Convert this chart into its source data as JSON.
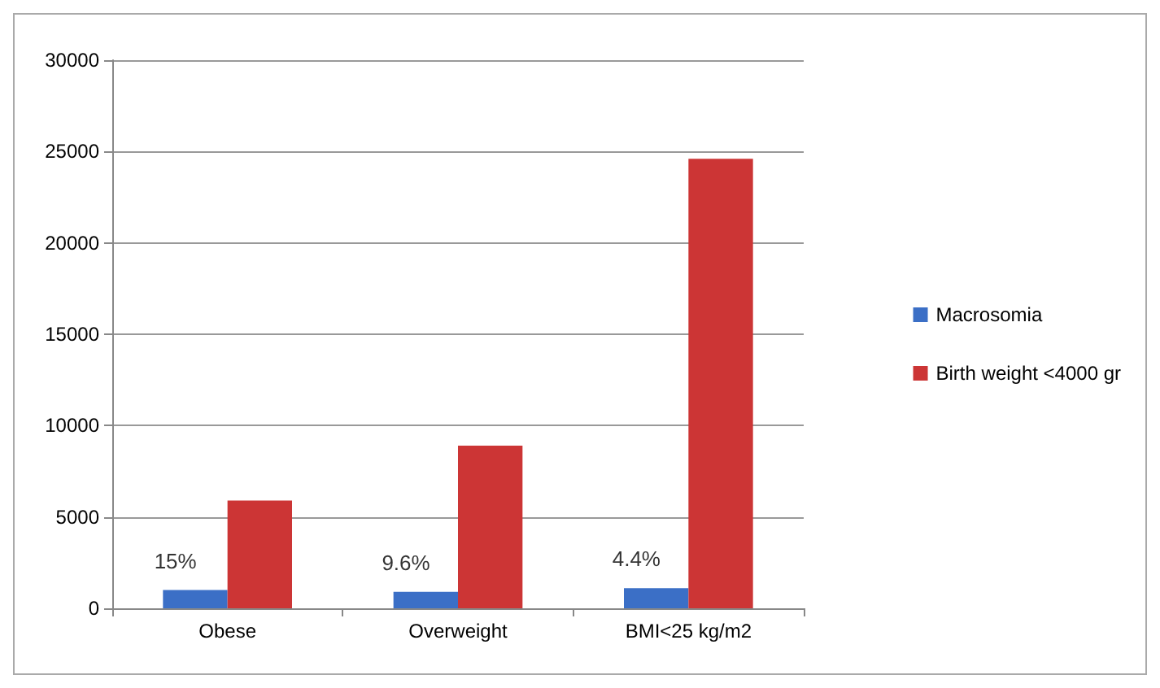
{
  "chart_data": {
    "type": "bar",
    "categories": [
      "Obese",
      "Overweight",
      "BMI<25 kg/m2"
    ],
    "series": [
      {
        "name": "Macrosomia",
        "color": "#3b6fc6",
        "values": [
          1000,
          900,
          1100
        ]
      },
      {
        "name": "Birth weight <4000 gr",
        "color": "#cc3535",
        "values": [
          5900,
          8900,
          24600
        ]
      }
    ],
    "ylim": [
      0,
      30000
    ],
    "yticks": [
      0,
      5000,
      10000,
      15000,
      20000,
      25000,
      30000
    ],
    "grid": "y",
    "legend": "right",
    "annotations": [
      {
        "text": "15%",
        "x": "Obese",
        "y": 2600
      },
      {
        "text": "9.6%",
        "x": "Overweight",
        "y": 2500
      },
      {
        "text": "4.4%",
        "x": "BMI<25 kg/m2",
        "y": 2700
      }
    ]
  }
}
